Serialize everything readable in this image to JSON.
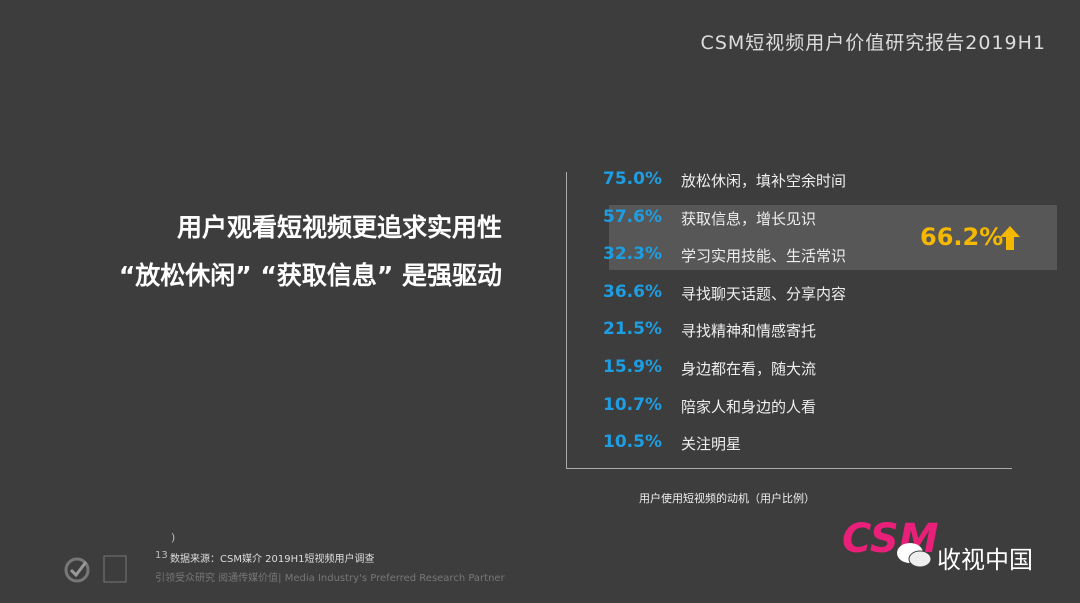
{
  "header": {
    "report_title": "CSM短视频用户价值研究报告2019H1"
  },
  "headline": {
    "line1": "用户观看短视频更追求实用性",
    "line2": "“放松休闲”  “获取信息”  是强驱动"
  },
  "motives": [
    {
      "percent": "75.0%",
      "label": "放松休闲，填补空余时间"
    },
    {
      "percent": "57.6%",
      "label": "获取信息，增长见识"
    },
    {
      "percent": "32.3%",
      "label": "学习实用技能、生活常识"
    },
    {
      "percent": "36.6%",
      "label": "寻找聊天话题、分享内容"
    },
    {
      "percent": "21.5%",
      "label": "寻找精神和情感寄托"
    },
    {
      "percent": "15.9%",
      "label": "身边都在看，随大流"
    },
    {
      "percent": "10.7%",
      "label": "陪家人和身边的人看"
    },
    {
      "percent": "10.5%",
      "label": "关注明星"
    }
  ],
  "highlight": {
    "percent": "66.2%"
  },
  "caption": "用户使用短视频的动机（用户比例）",
  "footer": {
    "paren": ")",
    "page": "13",
    "source": "数据来源：CSM媒介 2019H1短视频用户调查",
    "slogan": "引领受众研究 阅通传媒价值| Media Industry's Preferred Research Partner"
  },
  "logo": {
    "brand": "CSM",
    "watermark": "收视中国"
  }
}
